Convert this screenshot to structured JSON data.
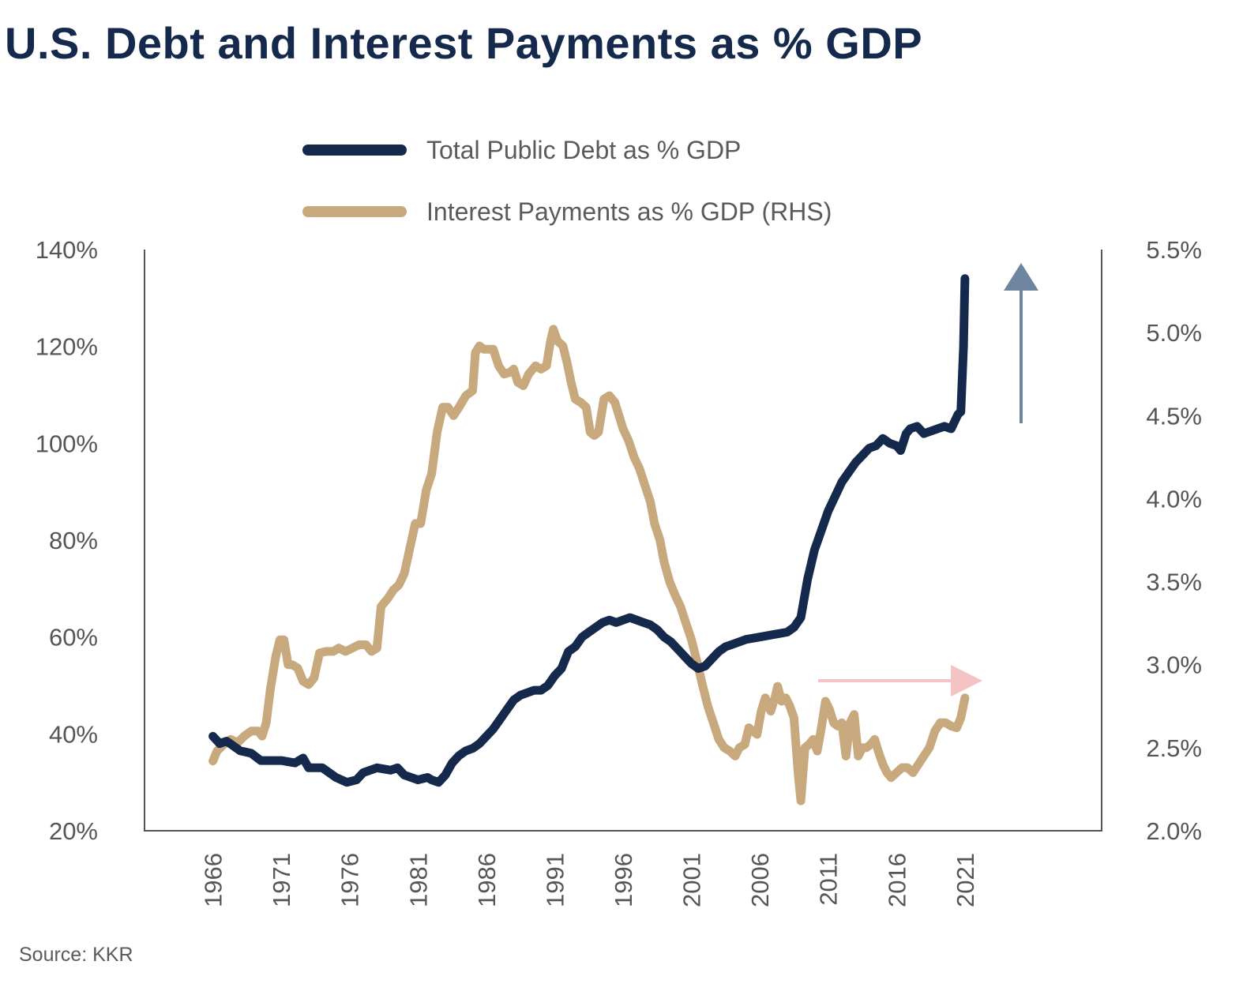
{
  "title": "U.S. Debt and Interest Payments as % GDP",
  "source": "Source: KKR",
  "colors": {
    "title": "#14294b",
    "debt": "#14294b",
    "interest": "#c8a97e",
    "debt_arrow": "#6e85a0",
    "interest_arrow": "#f4c4c4",
    "axis": "#555555"
  },
  "chart_data": {
    "type": "line",
    "title": "U.S. Debt and Interest Payments as % GDP",
    "legend": [
      {
        "label": "Total Public Debt as % GDP",
        "color": "#14294b"
      },
      {
        "label": "Interest Payments as % GDP (RHS)",
        "color": "#c8a97e"
      }
    ],
    "legend_position": "top-center",
    "grid": false,
    "x_axis": {
      "ticks": [
        "1966",
        "1971",
        "1976",
        "1981",
        "1986",
        "1991",
        "1996",
        "2001",
        "2006",
        "2011",
        "2016",
        "2021"
      ],
      "range": [
        1961,
        2031
      ]
    },
    "y_left": {
      "ticks": [
        "20%",
        "40%",
        "60%",
        "80%",
        "100%",
        "120%",
        "140%"
      ],
      "range": [
        20,
        140
      ]
    },
    "y_right": {
      "ticks": [
        "2.0%",
        "2.5%",
        "3.0%",
        "3.5%",
        "4.0%",
        "4.5%",
        "5.0%",
        "5.5%"
      ],
      "range": [
        2.0,
        5.5
      ]
    },
    "series": [
      {
        "name": "Total Public Debt as % GDP",
        "axis": "left",
        "points": [
          [
            1966.0,
            39.5
          ],
          [
            1966.5,
            38
          ],
          [
            1967,
            38.5
          ],
          [
            1968,
            36.5
          ],
          [
            1968.8,
            36
          ],
          [
            1969.5,
            34.5
          ],
          [
            1970,
            34.5
          ],
          [
            1971,
            34.5
          ],
          [
            1972,
            34
          ],
          [
            1972.6,
            35
          ],
          [
            1973,
            33
          ],
          [
            1974,
            33
          ],
          [
            1975,
            31
          ],
          [
            1975.8,
            30
          ],
          [
            1976.5,
            30.5
          ],
          [
            1977,
            32
          ],
          [
            1978,
            33
          ],
          [
            1979,
            32.5
          ],
          [
            1979.5,
            33
          ],
          [
            1980,
            31.5
          ],
          [
            1981,
            30.5
          ],
          [
            1981.7,
            31
          ],
          [
            1982,
            30.5
          ],
          [
            1982.5,
            30
          ],
          [
            1983,
            31.5
          ],
          [
            1983.5,
            34
          ],
          [
            1984,
            35.5
          ],
          [
            1984.5,
            36.5
          ],
          [
            1985,
            37
          ],
          [
            1985.5,
            38
          ],
          [
            1986,
            39.5
          ],
          [
            1986.5,
            41
          ],
          [
            1987,
            43
          ],
          [
            1987.5,
            45
          ],
          [
            1988,
            47
          ],
          [
            1988.5,
            48
          ],
          [
            1989,
            48.5
          ],
          [
            1989.5,
            49
          ],
          [
            1990,
            49
          ],
          [
            1990.5,
            50
          ],
          [
            1991,
            52
          ],
          [
            1991.5,
            53.5
          ],
          [
            1992,
            57
          ],
          [
            1992.5,
            58
          ],
          [
            1993,
            60
          ],
          [
            1993.5,
            61
          ],
          [
            1994,
            62
          ],
          [
            1994.5,
            63
          ],
          [
            1995,
            63.5
          ],
          [
            1995.5,
            63
          ],
          [
            1996,
            63.5
          ],
          [
            1996.5,
            64
          ],
          [
            1997,
            63.5
          ],
          [
            1997.5,
            63
          ],
          [
            1998,
            62.5
          ],
          [
            1998.5,
            61.5
          ],
          [
            1999,
            60
          ],
          [
            1999.5,
            59
          ],
          [
            2000,
            57.5
          ],
          [
            2000.5,
            56
          ],
          [
            2001,
            54.5
          ],
          [
            2001.5,
            53.5
          ],
          [
            2002,
            54
          ],
          [
            2002.5,
            55.5
          ],
          [
            2003,
            57
          ],
          [
            2003.5,
            58
          ],
          [
            2004,
            58.5
          ],
          [
            2004.5,
            59
          ],
          [
            2005,
            59.5
          ],
          [
            2006,
            60
          ],
          [
            2007,
            60.5
          ],
          [
            2008,
            61
          ],
          [
            2008.5,
            62
          ],
          [
            2009,
            64
          ],
          [
            2009.5,
            72
          ],
          [
            2010,
            78
          ],
          [
            2010.5,
            82
          ],
          [
            2011,
            86
          ],
          [
            2011.5,
            89
          ],
          [
            2012,
            92
          ],
          [
            2012.5,
            94
          ],
          [
            2013,
            96
          ],
          [
            2013.5,
            97.5
          ],
          [
            2014,
            99
          ],
          [
            2014.5,
            99.5
          ],
          [
            2015,
            101
          ],
          [
            2015.5,
            100
          ],
          [
            2016,
            99.5
          ],
          [
            2016.3,
            98.5
          ],
          [
            2016.7,
            102
          ],
          [
            2017,
            103
          ],
          [
            2017.5,
            103.5
          ],
          [
            2018,
            102
          ],
          [
            2018.5,
            102.5
          ],
          [
            2019,
            103
          ],
          [
            2019.5,
            103.5
          ],
          [
            2020,
            103
          ],
          [
            2020.5,
            106
          ],
          [
            2020.7,
            106.5
          ],
          [
            2020.9,
            120
          ],
          [
            2021.0,
            134
          ]
        ]
      },
      {
        "name": "Interest Payments as % GDP (RHS)",
        "axis": "right",
        "points": [
          [
            1966.0,
            2.42
          ],
          [
            1966.3,
            2.48
          ],
          [
            1966.8,
            2.52
          ],
          [
            1967.3,
            2.55
          ],
          [
            1967.8,
            2.53
          ],
          [
            1968.3,
            2.57
          ],
          [
            1968.8,
            2.6
          ],
          [
            1969.3,
            2.6
          ],
          [
            1969.6,
            2.57
          ],
          [
            1969.9,
            2.65
          ],
          [
            1970.2,
            2.85
          ],
          [
            1970.6,
            3.05
          ],
          [
            1970.9,
            3.15
          ],
          [
            1971.2,
            3.15
          ],
          [
            1971.5,
            3.0
          ],
          [
            1971.8,
            3.0
          ],
          [
            1972.2,
            2.98
          ],
          [
            1972.6,
            2.9
          ],
          [
            1973.0,
            2.88
          ],
          [
            1973.4,
            2.92
          ],
          [
            1973.8,
            3.07
          ],
          [
            1974.3,
            3.08
          ],
          [
            1974.8,
            3.08
          ],
          [
            1975.2,
            3.1
          ],
          [
            1975.7,
            3.08
          ],
          [
            1976.2,
            3.1
          ],
          [
            1976.7,
            3.12
          ],
          [
            1977.2,
            3.12
          ],
          [
            1977.6,
            3.08
          ],
          [
            1978.0,
            3.1
          ],
          [
            1978.3,
            3.35
          ],
          [
            1978.8,
            3.4
          ],
          [
            1979.2,
            3.45
          ],
          [
            1979.6,
            3.48
          ],
          [
            1980.0,
            3.55
          ],
          [
            1980.4,
            3.7
          ],
          [
            1980.8,
            3.85
          ],
          [
            1981.2,
            3.85
          ],
          [
            1981.6,
            4.05
          ],
          [
            1982.0,
            4.15
          ],
          [
            1982.4,
            4.4
          ],
          [
            1982.8,
            4.55
          ],
          [
            1983.2,
            4.55
          ],
          [
            1983.6,
            4.5
          ],
          [
            1984.0,
            4.55
          ],
          [
            1984.5,
            4.62
          ],
          [
            1985.0,
            4.65
          ],
          [
            1985.2,
            4.88
          ],
          [
            1985.5,
            4.92
          ],
          [
            1985.8,
            4.9
          ],
          [
            1986.1,
            4.9
          ],
          [
            1986.5,
            4.9
          ],
          [
            1986.9,
            4.8
          ],
          [
            1987.3,
            4.75
          ],
          [
            1987.7,
            4.76
          ],
          [
            1988.0,
            4.78
          ],
          [
            1988.3,
            4.7
          ],
          [
            1988.7,
            4.68
          ],
          [
            1989.1,
            4.75
          ],
          [
            1989.6,
            4.8
          ],
          [
            1990.0,
            4.78
          ],
          [
            1990.4,
            4.8
          ],
          [
            1990.7,
            4.95
          ],
          [
            1990.9,
            5.02
          ],
          [
            1991.2,
            4.95
          ],
          [
            1991.6,
            4.92
          ],
          [
            1991.9,
            4.82
          ],
          [
            1992.2,
            4.7
          ],
          [
            1992.5,
            4.6
          ],
          [
            1992.9,
            4.58
          ],
          [
            1993.3,
            4.55
          ],
          [
            1993.6,
            4.4
          ],
          [
            1993.9,
            4.38
          ],
          [
            1994.2,
            4.4
          ],
          [
            1994.6,
            4.6
          ],
          [
            1995.0,
            4.62
          ],
          [
            1995.4,
            4.58
          ],
          [
            1995.7,
            4.5
          ],
          [
            1996.0,
            4.42
          ],
          [
            1996.4,
            4.35
          ],
          [
            1996.8,
            4.25
          ],
          [
            1997.2,
            4.18
          ],
          [
            1997.6,
            4.08
          ],
          [
            1998.0,
            3.98
          ],
          [
            1998.3,
            3.85
          ],
          [
            1998.7,
            3.75
          ],
          [
            1999.0,
            3.62
          ],
          [
            1999.4,
            3.5
          ],
          [
            1999.8,
            3.42
          ],
          [
            2000.2,
            3.35
          ],
          [
            2000.6,
            3.25
          ],
          [
            2001.0,
            3.15
          ],
          [
            2001.4,
            3.02
          ],
          [
            2001.8,
            2.88
          ],
          [
            2002.2,
            2.75
          ],
          [
            2002.6,
            2.65
          ],
          [
            2003.0,
            2.55
          ],
          [
            2003.4,
            2.5
          ],
          [
            2003.8,
            2.48
          ],
          [
            2004.2,
            2.45
          ],
          [
            2004.5,
            2.5
          ],
          [
            2004.9,
            2.52
          ],
          [
            2005.2,
            2.62
          ],
          [
            2005.5,
            2.6
          ],
          [
            2005.8,
            2.58
          ],
          [
            2006.1,
            2.72
          ],
          [
            2006.4,
            2.8
          ],
          [
            2006.8,
            2.72
          ],
          [
            2007.1,
            2.8
          ],
          [
            2007.3,
            2.87
          ],
          [
            2007.6,
            2.78
          ],
          [
            2007.9,
            2.8
          ],
          [
            2008.2,
            2.75
          ],
          [
            2008.5,
            2.68
          ],
          [
            2008.8,
            2.35
          ],
          [
            2009.0,
            2.18
          ],
          [
            2009.3,
            2.5
          ],
          [
            2009.6,
            2.52
          ],
          [
            2009.9,
            2.55
          ],
          [
            2010.2,
            2.48
          ],
          [
            2010.5,
            2.62
          ],
          [
            2010.8,
            2.78
          ],
          [
            2011.1,
            2.73
          ],
          [
            2011.4,
            2.65
          ],
          [
            2011.7,
            2.63
          ],
          [
            2012.0,
            2.65
          ],
          [
            2012.3,
            2.45
          ],
          [
            2012.6,
            2.65
          ],
          [
            2012.9,
            2.7
          ],
          [
            2013.2,
            2.45
          ],
          [
            2013.5,
            2.5
          ],
          [
            2013.8,
            2.5
          ],
          [
            2014.1,
            2.52
          ],
          [
            2014.4,
            2.55
          ],
          [
            2014.7,
            2.47
          ],
          [
            2015.0,
            2.4
          ],
          [
            2015.3,
            2.35
          ],
          [
            2015.6,
            2.32
          ],
          [
            2016.0,
            2.35
          ],
          [
            2016.4,
            2.38
          ],
          [
            2016.8,
            2.38
          ],
          [
            2017.2,
            2.35
          ],
          [
            2017.6,
            2.4
          ],
          [
            2018.0,
            2.45
          ],
          [
            2018.4,
            2.5
          ],
          [
            2018.8,
            2.6
          ],
          [
            2019.2,
            2.65
          ],
          [
            2019.6,
            2.65
          ],
          [
            2020.0,
            2.63
          ],
          [
            2020.4,
            2.62
          ],
          [
            2020.7,
            2.68
          ],
          [
            2021.0,
            2.8
          ]
        ]
      }
    ]
  }
}
